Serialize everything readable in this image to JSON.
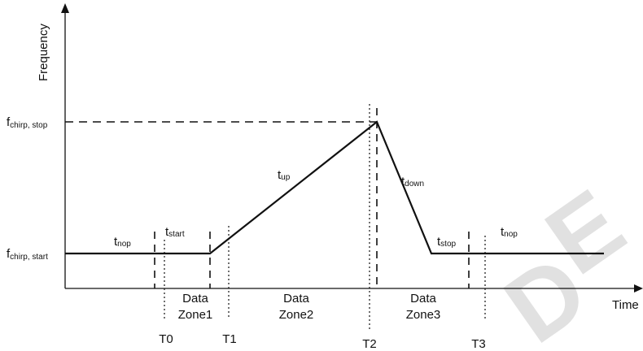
{
  "axes": {
    "y_label": "Frequency",
    "x_label": "Time"
  },
  "frequency_levels": {
    "stop": {
      "main": "f",
      "sub": "chirp, stop"
    },
    "start": {
      "main": "f",
      "sub": "chirp, start"
    }
  },
  "segment_labels": {
    "nop_left": {
      "main": "t",
      "sub": "nop"
    },
    "start": {
      "main": "t",
      "sub": "start"
    },
    "up": {
      "main": "t",
      "sub": "up"
    },
    "down": {
      "main": "t",
      "sub": "down"
    },
    "stop": {
      "main": "t",
      "sub": "stop"
    },
    "nop_right": {
      "main": "t",
      "sub": "nop"
    }
  },
  "zones": [
    {
      "line1": "Data",
      "line2": "Zone1"
    },
    {
      "line1": "Data",
      "line2": "Zone2"
    },
    {
      "line1": "Data",
      "line2": "Zone3"
    }
  ],
  "time_markers": [
    "T0",
    "T1",
    "T2",
    "T3"
  ],
  "colors": {
    "line": "#111111",
    "watermark": "#2f6fd1"
  }
}
